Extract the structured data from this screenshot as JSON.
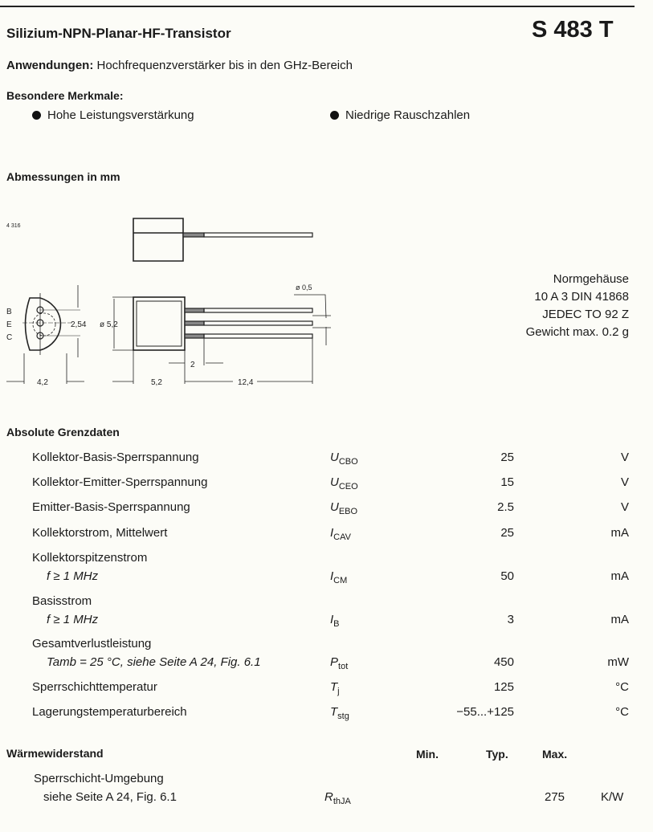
{
  "header": {
    "title": "Silizium-NPN-Planar-HF-Transistor",
    "part_number": "S 483 T"
  },
  "applications": {
    "label": "Anwendungen:",
    "text": "Hochfrequenzverstärker bis in den GHz-Bereich"
  },
  "features": {
    "heading": "Besondere Merkmale:",
    "items": [
      "Hohe Leistungsverstärkung",
      "Niedrige Rauschzahlen"
    ]
  },
  "dimensions": {
    "heading": "Abmessungen in mm",
    "drawing_code": "4 316",
    "pins": [
      "B",
      "E",
      "C"
    ],
    "labels": {
      "pitch": "2,54",
      "diameter": "ø 5,2",
      "lead_diameter": "ø 0,5",
      "width": "4,2",
      "body_length": "5,2",
      "lead_offset": "2",
      "lead_length": "12,4"
    },
    "package": [
      "Normgehäuse",
      "10 A 3 DIN 41868",
      "JEDEC TO 92 Z",
      "Gewicht max. 0.2 g"
    ]
  },
  "absolute_ratings": {
    "heading": "Absolute Grenzdaten",
    "rows": [
      {
        "label": "Kollektor-Basis-Sperrspannung",
        "cond": "",
        "sym": "U",
        "sub": "CBO",
        "value": "25",
        "unit": "V"
      },
      {
        "label": "Kollektor-Emitter-Sperrspannung",
        "cond": "",
        "sym": "U",
        "sub": "CEO",
        "value": "15",
        "unit": "V"
      },
      {
        "label": "Emitter-Basis-Sperrspannung",
        "cond": "",
        "sym": "U",
        "sub": "EBO",
        "value": "2.5",
        "unit": "V"
      },
      {
        "label": "Kollektorstrom, Mittelwert",
        "cond": "",
        "sym": "I",
        "sub": "CAV",
        "value": "25",
        "unit": "mA"
      },
      {
        "label": "Kollektorspitzenstrom",
        "cond": "f ≥ 1 MHz",
        "sym": "I",
        "sub": "CM",
        "value": "50",
        "unit": "mA"
      },
      {
        "label": "Basisstrom",
        "cond": "f ≥ 1 MHz",
        "sym": "I",
        "sub": "B",
        "value": "3",
        "unit": "mA"
      },
      {
        "label": "Gesamtverlustleistung",
        "cond": "Tamb = 25 °C, siehe Seite A 24, Fig. 6.1",
        "sym": "P",
        "sub": "tot",
        "value": "450",
        "unit": "mW"
      },
      {
        "label": "Sperrschichttemperatur",
        "cond": "",
        "sym": "T",
        "sub": "j",
        "value": "125",
        "unit": "°C"
      },
      {
        "label": "Lagerungstemperaturbereich",
        "cond": "",
        "sym": "T",
        "sub": "stg",
        "value": "−55...+125",
        "unit": "°C"
      }
    ]
  },
  "thermal": {
    "heading": "Wärmewiderstand",
    "col_min": "Min.",
    "col_typ": "Typ.",
    "col_max": "Max.",
    "rows": [
      {
        "label": "Sperrschicht-Umgebung",
        "cond": "siehe Seite A 24, Fig. 6.1",
        "sym": "R",
        "sub": "thJA",
        "min": "",
        "typ": "",
        "max": "275",
        "unit": "K/W"
      }
    ]
  }
}
